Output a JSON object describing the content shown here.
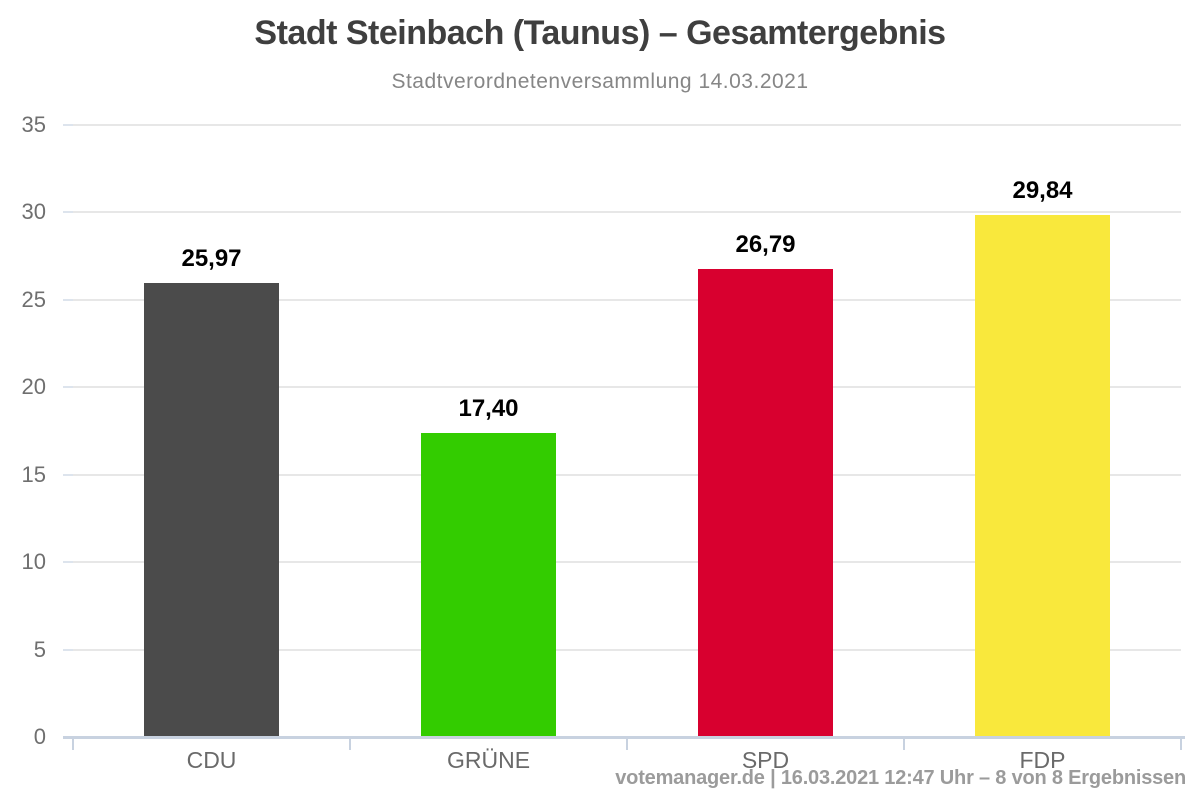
{
  "title": "Stadt Steinbach (Taunus) – Gesamtergebnis",
  "subtitle": "Stadtverordnetenversammlung 14.03.2021",
  "footer": "votemanager.de | 16.03.2021 12:47 Uhr – 8 von 8 Ergebnissen",
  "chart_data": {
    "type": "bar",
    "title": "Stadt Steinbach (Taunus) – Gesamtergebnis",
    "subtitle": "Stadtverordnetenversammlung 14.03.2021",
    "categories": [
      "CDU",
      "GRÜNE",
      "SPD",
      "FDP"
    ],
    "values": [
      25.97,
      17.4,
      26.79,
      29.84
    ],
    "value_labels": [
      "25,97",
      "17,40",
      "26,79",
      "29,84"
    ],
    "bar_colors": [
      "#4b4b4b",
      "#33cc00",
      "#d8002f",
      "#f9e83c"
    ],
    "xlabel": "",
    "ylabel": "",
    "ylim": [
      0,
      35
    ],
    "yticks": [
      0,
      5,
      10,
      15,
      20,
      25,
      30,
      35
    ],
    "grid": true,
    "grid_color": "#e7e7e7",
    "axis_color": "#c8d2e0",
    "legend": false,
    "footer": "votemanager.de | 16.03.2021 12:47 Uhr – 8 von 8 Ergebnissen"
  }
}
